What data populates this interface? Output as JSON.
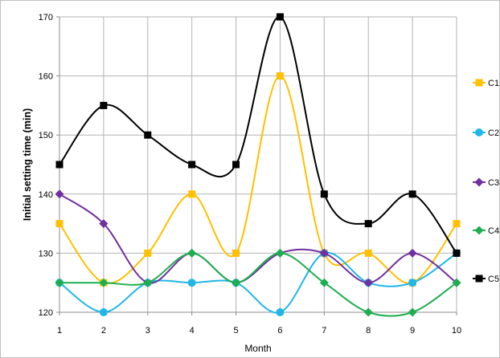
{
  "chart_data": {
    "type": "line",
    "title": "",
    "xlabel": "Month",
    "ylabel": "Initial setting time (min)",
    "x": [
      1,
      2,
      3,
      4,
      5,
      6,
      7,
      8,
      9,
      10
    ],
    "ylim": [
      120,
      170
    ],
    "yticks": [
      120,
      130,
      140,
      150,
      160,
      170
    ],
    "grid": true,
    "smooth": true,
    "legend": "right",
    "series": [
      {
        "name": "C1",
        "color": "#FFC000",
        "marker": "square",
        "values": [
          135,
          125,
          130,
          140,
          130,
          160,
          130,
          130,
          125,
          135
        ]
      },
      {
        "name": "C2",
        "color": "#21B6E8",
        "marker": "circle",
        "values": [
          125,
          120,
          125,
          125,
          125,
          120,
          130,
          125,
          125,
          130
        ]
      },
      {
        "name": "C3",
        "color": "#7030A0",
        "marker": "diamond",
        "values": [
          140,
          135,
          125,
          130,
          125,
          130,
          130,
          125,
          130,
          125
        ]
      },
      {
        "name": "C4",
        "color": "#1EAE4F",
        "marker": "diamond",
        "values": [
          125,
          125,
          125,
          130,
          125,
          130,
          125,
          120,
          120,
          125
        ]
      },
      {
        "name": "C5",
        "color": "#000000",
        "marker": "square",
        "values": [
          145,
          155,
          150,
          145,
          145,
          170,
          140,
          135,
          140,
          130
        ]
      }
    ]
  }
}
